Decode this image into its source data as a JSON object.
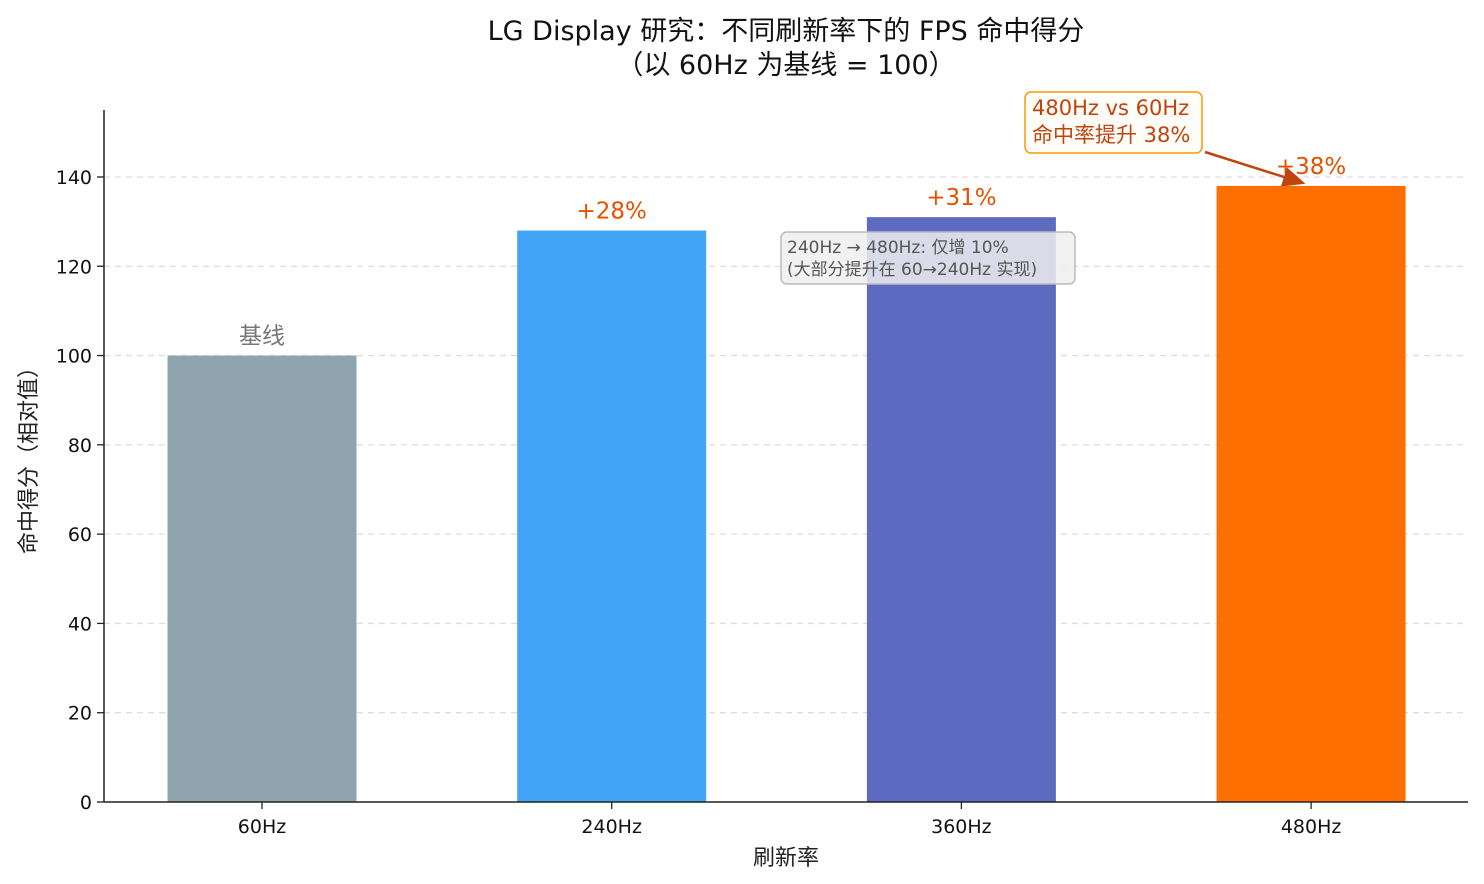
{
  "chart_data": {
    "type": "bar",
    "title": "LG Display 研究：不同刷新率下的 FPS 命中得分",
    "subtitle": "（以 60Hz 为基线 = 100）",
    "xlabel": "刷新率",
    "ylabel": "命中得分（相对值）",
    "categories": [
      "60Hz",
      "240Hz",
      "360Hz",
      "480Hz"
    ],
    "values": [
      100,
      128,
      131,
      138
    ],
    "colors": [
      "#90a4ae",
      "#42a5f5",
      "#5c6bc0",
      "#ff6f00"
    ],
    "data_labels": [
      "基线",
      "+28%",
      "+31%",
      "+38%"
    ],
    "data_label_colors": [
      "#777777",
      "#e65100",
      "#e65100",
      "#e65100"
    ],
    "ylim": [
      0,
      155
    ],
    "yticks": [
      0,
      20,
      40,
      60,
      80,
      100,
      120,
      140
    ],
    "grid": "horizontal-dashed",
    "annotations": [
      {
        "lines": [
          "480Hz vs 60Hz",
          "命中率提升 38%"
        ],
        "color": "#c0440e",
        "border_color": "#ff9800",
        "arrow_to_category": "480Hz"
      },
      {
        "lines": [
          "240Hz → 480Hz: 仅增 10%",
          "(大部分提升在 60→240Hz 实现)"
        ],
        "color": "#555555",
        "border_color": "#bbbbbb"
      }
    ]
  }
}
